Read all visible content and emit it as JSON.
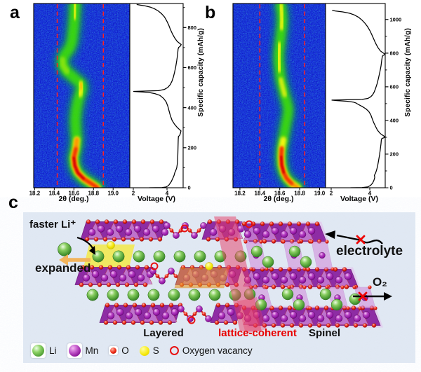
{
  "figure": {
    "panel_labels": {
      "a": "a",
      "b": "b",
      "c": "c"
    }
  },
  "axes": {
    "xrd_xlabel": "2θ (deg.)",
    "voltage_xlabel": "Voltage (V)",
    "capacity_ylabel": "Specific capacity (mAh/g)"
  },
  "chart_data": [
    {
      "type": "heatmap",
      "panel": "a",
      "xlabel": "2θ (deg.)",
      "xticks": [
        18.2,
        18.4,
        18.6,
        18.8,
        19.0
      ],
      "x_range": [
        18.19,
        19.17
      ],
      "y_range": [
        0,
        920
      ],
      "colormap": "jet (blue-green-yellow-red)",
      "dashed_lines_2theta": [
        18.43,
        18.9
      ],
      "band_centerline": [
        [
          18.84,
          0
        ],
        [
          18.78,
          20
        ],
        [
          18.7,
          45
        ],
        [
          18.64,
          75
        ],
        [
          18.61,
          110
        ],
        [
          18.6,
          150
        ],
        [
          18.62,
          195
        ],
        [
          18.63,
          240
        ],
        [
          18.62,
          290
        ],
        [
          18.615,
          340
        ],
        [
          18.625,
          390
        ],
        [
          18.64,
          430
        ],
        [
          18.66,
          465
        ],
        [
          18.68,
          495
        ],
        [
          18.67,
          520
        ],
        [
          18.6,
          550
        ],
        [
          18.53,
          580
        ],
        [
          18.49,
          610
        ],
        [
          18.485,
          640
        ],
        [
          18.51,
          665
        ],
        [
          18.555,
          695
        ],
        [
          18.58,
          730
        ],
        [
          18.59,
          770
        ],
        [
          18.6,
          810
        ],
        [
          18.605,
          850
        ],
        [
          18.61,
          890
        ],
        [
          18.615,
          920
        ]
      ],
      "intensity_layers": [
        {
          "color": "#0fa050",
          "width": 24,
          "blur": 6,
          "opacity": 0.75,
          "cap_range": [
            0,
            920
          ]
        },
        {
          "color": "#3bd80c",
          "width": 14,
          "blur": 3.5,
          "opacity": 0.95,
          "cap_range": [
            0,
            920
          ]
        },
        {
          "color": "#f6f60c",
          "width": 9,
          "blur": 2.5,
          "opacity": 1,
          "cap_range": [
            0,
            285
          ]
        },
        {
          "color": "#f6f60c",
          "width": 8,
          "blur": 2.5,
          "opacity": 0.95,
          "cap_range": [
            450,
            540
          ]
        },
        {
          "color": "#90e60a",
          "width": 8,
          "blur": 2.5,
          "opacity": 0.9,
          "cap_range": [
            555,
            660
          ]
        },
        {
          "color": "#f6f60c",
          "width": 7,
          "blur": 2.5,
          "opacity": 0.9,
          "cap_range": [
            840,
            920
          ]
        },
        {
          "color": "#ff9800",
          "width": 7,
          "blur": 2,
          "opacity": 1,
          "cap_range": [
            0,
            240
          ]
        },
        {
          "color": "#ffb400",
          "width": 4,
          "blur": 2,
          "opacity": 0.9,
          "cap_range": [
            475,
            520
          ]
        },
        {
          "color": "#f52f00",
          "width": 5,
          "blur": 2,
          "opacity": 1,
          "cap_range": [
            0,
            205
          ]
        },
        {
          "color": "#d90000",
          "width": 3,
          "blur": 1.5,
          "opacity": 1,
          "cap_range": [
            30,
            170
          ]
        }
      ]
    },
    {
      "type": "line",
      "panel": "a",
      "xlabel": "Voltage (V)",
      "ylabel": "Specific capacity (mAh/g)",
      "xticks": [
        2,
        4
      ],
      "yticks": [
        0,
        200,
        400,
        600,
        800
      ],
      "x_range": [
        1.83,
        5.15
      ],
      "y_range": [
        0,
        920
      ],
      "points": [
        [
          2.95,
          0
        ],
        [
          3.7,
          1
        ],
        [
          3.95,
          4
        ],
        [
          4.1,
          12
        ],
        [
          4.25,
          30
        ],
        [
          4.35,
          48
        ],
        [
          4.42,
          62
        ],
        [
          4.46,
          74
        ],
        [
          4.52,
          86
        ],
        [
          4.58,
          100
        ],
        [
          4.62,
          125
        ],
        [
          4.64,
          160
        ],
        [
          4.655,
          200
        ],
        [
          4.665,
          240
        ],
        [
          4.68,
          256
        ],
        [
          4.74,
          261
        ],
        [
          4.78,
          267
        ],
        [
          4.81,
          276
        ],
        [
          4.83,
          284
        ],
        [
          4.6,
          302
        ],
        [
          4.45,
          317
        ],
        [
          4.3,
          337
        ],
        [
          4.2,
          360
        ],
        [
          4.12,
          384
        ],
        [
          4.05,
          407
        ],
        [
          3.95,
          429
        ],
        [
          3.8,
          446
        ],
        [
          3.58,
          461
        ],
        [
          3.28,
          470
        ],
        [
          2.9,
          476
        ],
        [
          2.4,
          479
        ],
        [
          2.0,
          481
        ],
        [
          3.5,
          485
        ],
        [
          3.85,
          491
        ],
        [
          4.05,
          501
        ],
        [
          4.2,
          516
        ],
        [
          4.3,
          533
        ],
        [
          4.38,
          553
        ],
        [
          4.45,
          577
        ],
        [
          4.52,
          605
        ],
        [
          4.58,
          635
        ],
        [
          4.63,
          665
        ],
        [
          4.66,
          692
        ],
        [
          4.69,
          701
        ],
        [
          4.76,
          705
        ],
        [
          4.81,
          709
        ],
        [
          4.84,
          715
        ],
        [
          4.6,
          731
        ],
        [
          4.45,
          749
        ],
        [
          4.32,
          769
        ],
        [
          4.2,
          791
        ],
        [
          4.1,
          813
        ],
        [
          3.98,
          834
        ],
        [
          3.85,
          853
        ],
        [
          3.68,
          869
        ],
        [
          3.48,
          883
        ],
        [
          3.25,
          894
        ],
        [
          3.0,
          902
        ],
        [
          2.7,
          908
        ],
        [
          2.4,
          912
        ],
        [
          2.2,
          915
        ]
      ]
    },
    {
      "type": "heatmap",
      "panel": "b",
      "xlabel": "2θ (deg.)",
      "xticks": [
        18.2,
        18.4,
        18.6,
        18.8,
        19.0
      ],
      "x_range": [
        18.13,
        19.06
      ],
      "y_range": [
        0,
        1095
      ],
      "colormap": "jet (blue-green-yellow-red)",
      "dashed_lines_2theta": [
        18.4,
        18.85
      ],
      "band_centerline": [
        [
          18.78,
          0
        ],
        [
          18.72,
          25
        ],
        [
          18.67,
          55
        ],
        [
          18.64,
          90
        ],
        [
          18.62,
          135
        ],
        [
          18.615,
          185
        ],
        [
          18.62,
          235
        ],
        [
          18.635,
          285
        ],
        [
          18.65,
          335
        ],
        [
          18.665,
          385
        ],
        [
          18.68,
          430
        ],
        [
          18.685,
          470
        ],
        [
          18.67,
          510
        ],
        [
          18.65,
          550
        ],
        [
          18.63,
          595
        ],
        [
          18.61,
          645
        ],
        [
          18.6,
          700
        ],
        [
          18.59,
          750
        ],
        [
          18.59,
          800
        ],
        [
          18.6,
          850
        ],
        [
          18.61,
          900
        ],
        [
          18.62,
          950
        ],
        [
          18.625,
          1000
        ],
        [
          18.62,
          1045
        ],
        [
          18.61,
          1085
        ]
      ],
      "intensity_layers": [
        {
          "color": "#0fa050",
          "width": 22,
          "blur": 6,
          "opacity": 0.75,
          "cap_range": [
            0,
            1085
          ]
        },
        {
          "color": "#3bd80c",
          "width": 13,
          "blur": 3.5,
          "opacity": 0.95,
          "cap_range": [
            0,
            1085
          ]
        },
        {
          "color": "#f6f60c",
          "width": 9,
          "blur": 2.5,
          "opacity": 1,
          "cap_range": [
            0,
            330
          ]
        },
        {
          "color": "#f6f60c",
          "width": 6,
          "blur": 2.5,
          "opacity": 0.9,
          "cap_range": [
            545,
            670
          ]
        },
        {
          "color": "#f6f60c",
          "width": 8,
          "blur": 2.5,
          "opacity": 0.95,
          "cap_range": [
            695,
            865
          ]
        },
        {
          "color": "#f6f60c",
          "width": 7,
          "blur": 2.5,
          "opacity": 0.95,
          "cap_range": [
            935,
            1085
          ]
        },
        {
          "color": "#ff9800",
          "width": 6,
          "blur": 2,
          "opacity": 1,
          "cap_range": [
            0,
            265
          ]
        },
        {
          "color": "#ffa800",
          "width": 3.5,
          "blur": 2,
          "opacity": 0.85,
          "cap_range": [
            750,
            830
          ]
        },
        {
          "color": "#f52f00",
          "width": 5,
          "blur": 2,
          "opacity": 1,
          "cap_range": [
            25,
            245
          ]
        },
        {
          "color": "#d90000",
          "width": 3,
          "blur": 1.5,
          "opacity": 1,
          "cap_range": [
            70,
            215
          ]
        }
      ]
    },
    {
      "type": "line",
      "panel": "b",
      "xlabel": "Voltage (V)",
      "ylabel": "Specific capacity (mAh/g)",
      "xticks": [
        2,
        4
      ],
      "yticks": [
        0,
        200,
        400,
        600,
        800,
        1000
      ],
      "x_range": [
        1.7,
        4.8
      ],
      "y_range": [
        0,
        1095
      ],
      "points": [
        [
          3.0,
          0
        ],
        [
          3.6,
          1
        ],
        [
          3.9,
          5
        ],
        [
          4.05,
          15
        ],
        [
          4.15,
          28
        ],
        [
          4.22,
          45
        ],
        [
          4.26,
          62
        ],
        [
          4.24,
          74
        ],
        [
          4.3,
          88
        ],
        [
          4.36,
          108
        ],
        [
          4.41,
          133
        ],
        [
          4.46,
          163
        ],
        [
          4.51,
          197
        ],
        [
          4.55,
          232
        ],
        [
          4.58,
          262
        ],
        [
          4.6,
          286
        ],
        [
          4.63,
          293
        ],
        [
          4.71,
          296
        ],
        [
          4.76,
          299
        ],
        [
          4.78,
          303
        ],
        [
          4.55,
          322
        ],
        [
          4.4,
          342
        ],
        [
          4.3,
          364
        ],
        [
          4.2,
          388
        ],
        [
          4.12,
          412
        ],
        [
          4.05,
          434
        ],
        [
          3.95,
          453
        ],
        [
          3.8,
          469
        ],
        [
          3.62,
          482
        ],
        [
          3.46,
          492
        ],
        [
          3.36,
          498
        ],
        [
          3.3,
          503
        ],
        [
          3.14,
          509
        ],
        [
          2.8,
          514
        ],
        [
          2.3,
          518
        ],
        [
          2.02,
          521
        ],
        [
          3.6,
          525
        ],
        [
          3.9,
          531
        ],
        [
          4.05,
          541
        ],
        [
          4.15,
          553
        ],
        [
          4.23,
          569
        ],
        [
          4.3,
          591
        ],
        [
          4.38,
          619
        ],
        [
          4.45,
          651
        ],
        [
          4.52,
          687
        ],
        [
          4.58,
          723
        ],
        [
          4.62,
          757
        ],
        [
          4.65,
          781
        ],
        [
          4.69,
          787
        ],
        [
          4.75,
          790
        ],
        [
          4.78,
          794
        ],
        [
          4.55,
          813
        ],
        [
          4.42,
          834
        ],
        [
          4.3,
          859
        ],
        [
          4.2,
          885
        ],
        [
          4.1,
          911
        ],
        [
          4.0,
          935
        ],
        [
          3.88,
          958
        ],
        [
          3.75,
          978
        ],
        [
          3.6,
          996
        ],
        [
          3.42,
          1013
        ],
        [
          3.2,
          1027
        ],
        [
          2.95,
          1037
        ],
        [
          2.6,
          1045
        ],
        [
          2.2,
          1051
        ],
        [
          2.05,
          1054
        ]
      ]
    }
  ],
  "structure": {
    "annotations": {
      "faster_li": "faster Li⁺",
      "expanded": "expanded",
      "electrolyte": "electrolyte",
      "o2": "O₂",
      "layered": "Layered",
      "lattice_coherent": "lattice-coherent",
      "spinel": "Spinel"
    },
    "legend": [
      {
        "name": "Li",
        "color": "#5cb83c"
      },
      {
        "name": "Mn",
        "color": "#a21caf"
      },
      {
        "name": "O",
        "color": "#e11d1d"
      },
      {
        "name": "S",
        "color": "#f5e800"
      },
      {
        "name": "Oxygen vacancy",
        "color": "#e11d1d"
      }
    ],
    "colors": {
      "background": "#dfe7f2",
      "slab_purple": "#8e2ca4",
      "slab_facet": "#c77fd4",
      "spinel_overlay": "#e79ae7",
      "red_band": "#e63a64",
      "yellow_highlight": "#f4e83c",
      "orange_highlight": "#e89a28",
      "dashed_line": "#ff2020"
    }
  }
}
